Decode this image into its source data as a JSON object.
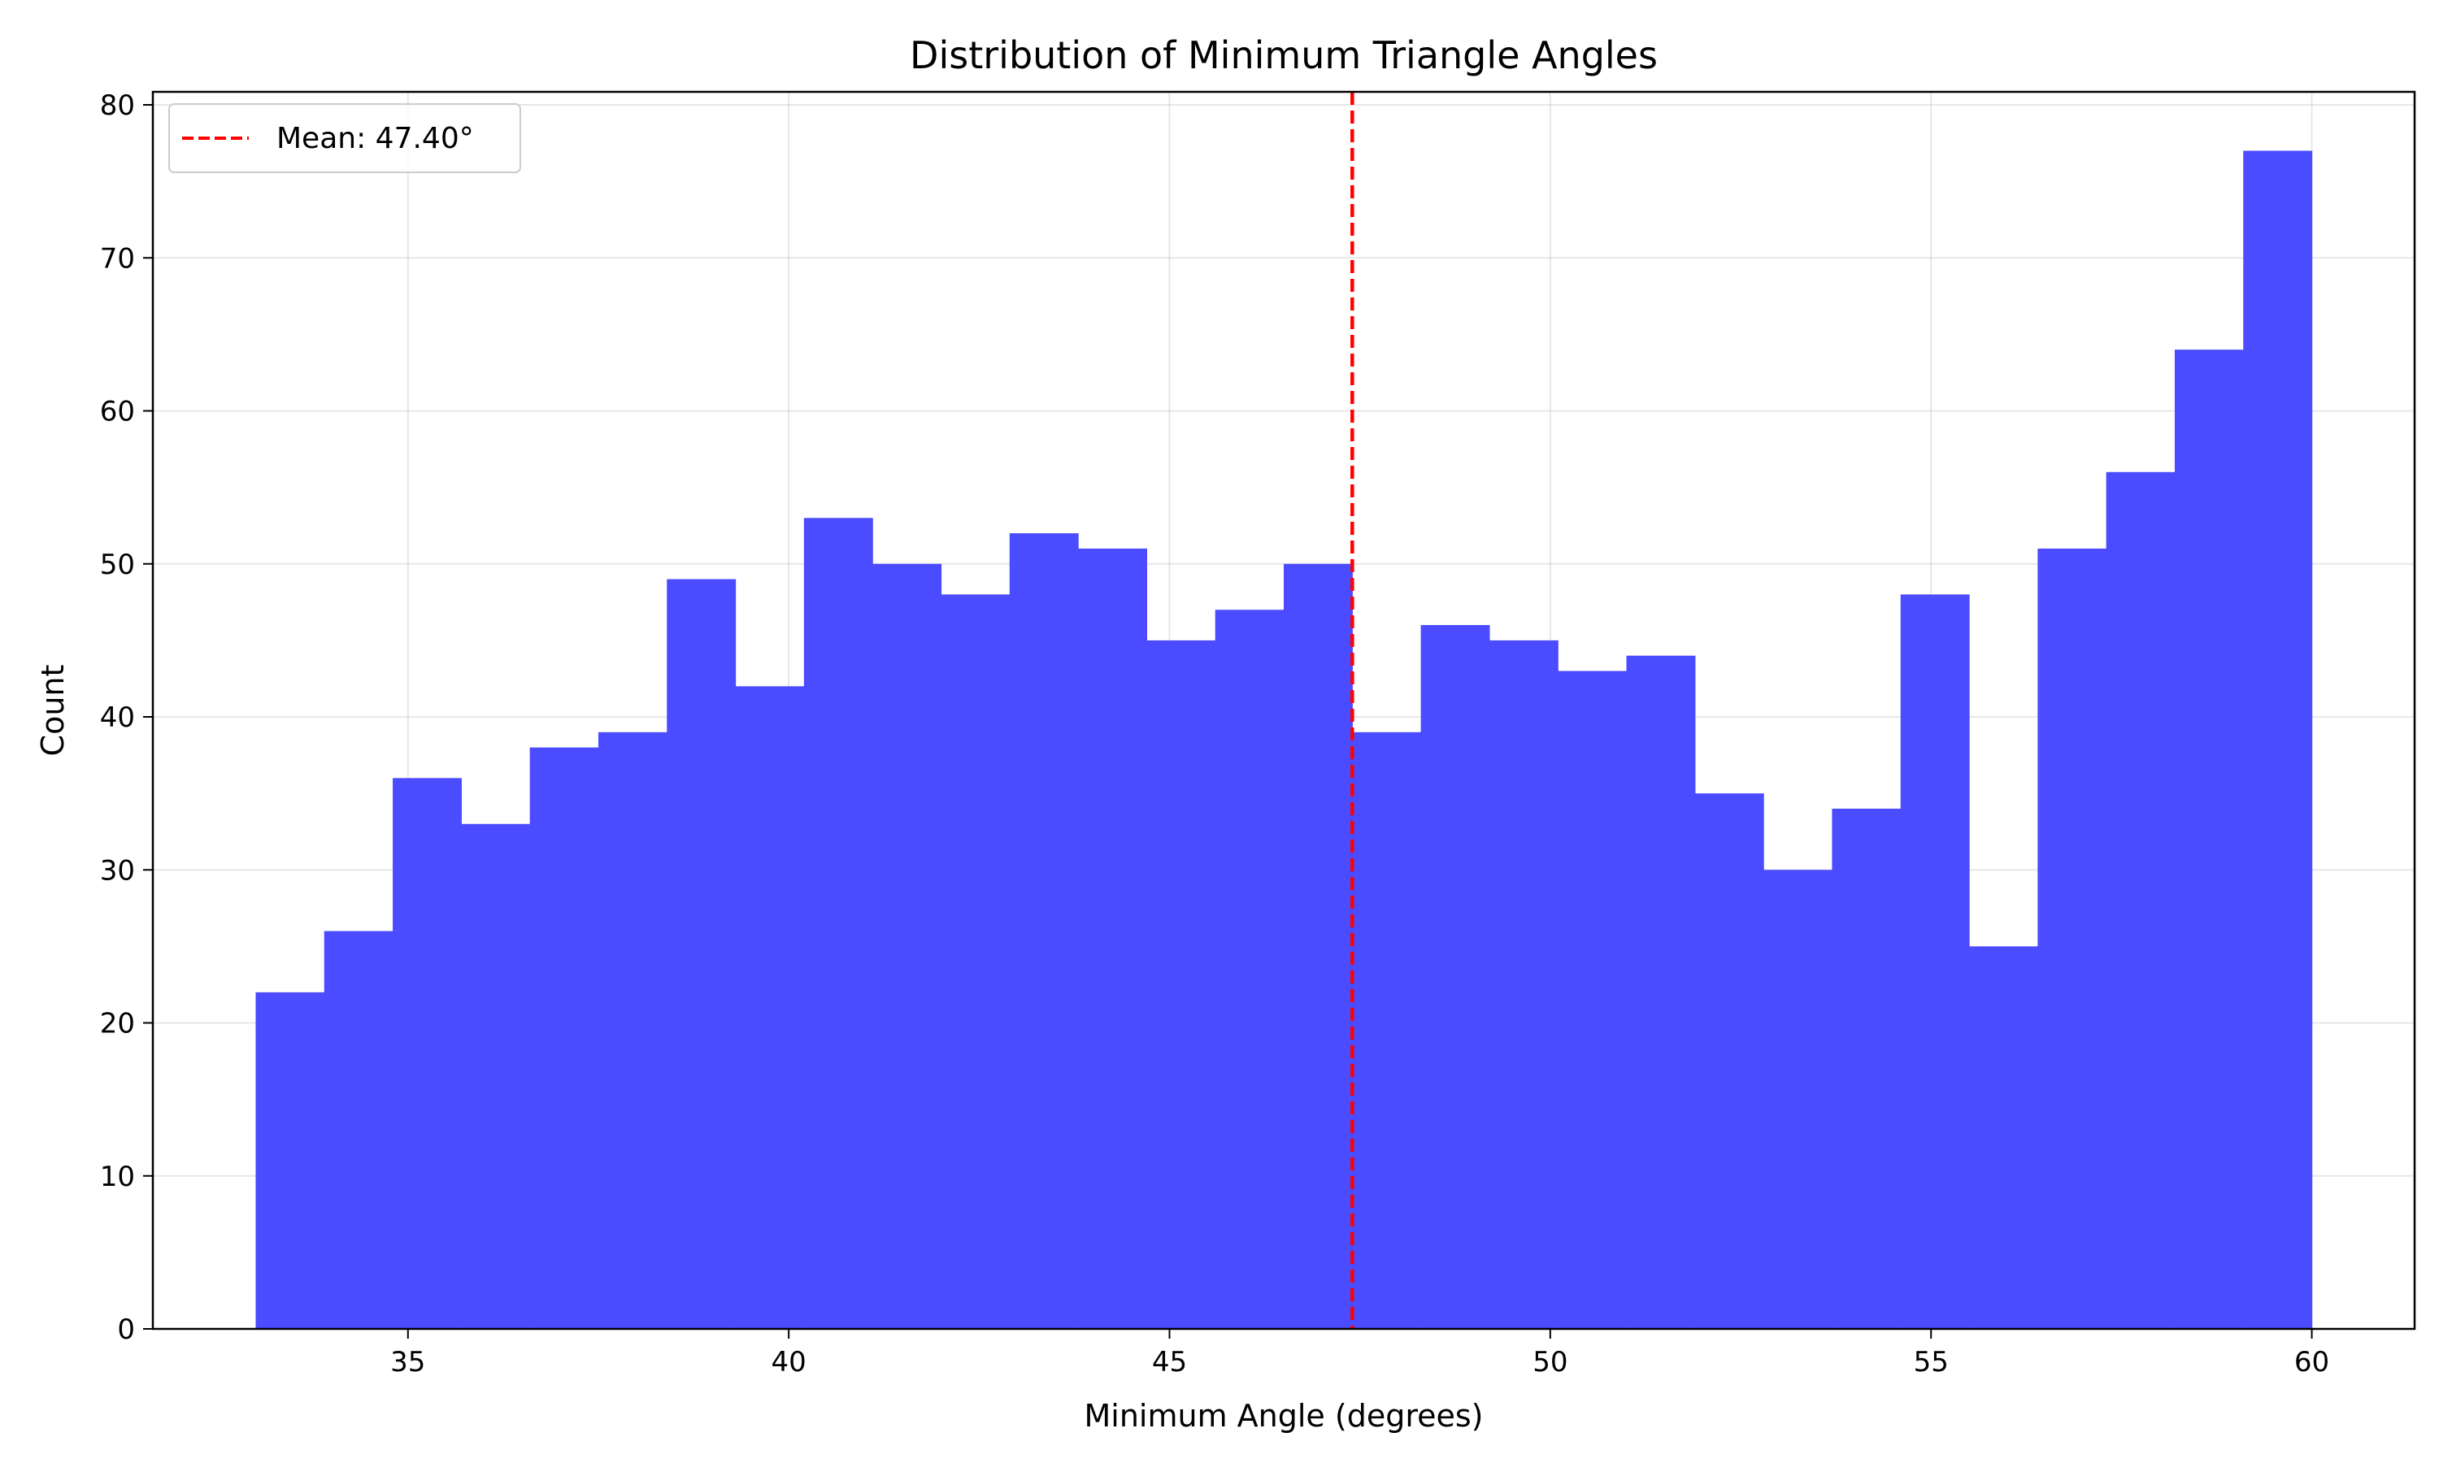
{
  "chart_data": {
    "type": "bar",
    "title": "Distribution of Minimum Triangle Angles",
    "xlabel": "Minimum Angle (degrees)",
    "ylabel": "Count",
    "xlim": [
      31.65,
      61.35
    ],
    "ylim": [
      0,
      80.85
    ],
    "xticks": [
      35,
      40,
      45,
      50,
      55,
      60
    ],
    "xtick_labels": [
      "35",
      "40",
      "45",
      "50",
      "55",
      "60"
    ],
    "yticks": [
      0,
      10,
      20,
      30,
      40,
      50,
      60,
      70,
      80
    ],
    "ytick_labels": [
      "0",
      "10",
      "20",
      "30",
      "40",
      "50",
      "60",
      "70",
      "80"
    ],
    "grid": true,
    "bin_start": 33.0,
    "bin_end": 60.0,
    "bin_edges": [
      33.0,
      33.9,
      34.8,
      35.7,
      36.6,
      37.5,
      38.4,
      39.3,
      40.2,
      41.1,
      42.0,
      42.9,
      43.8,
      44.7,
      45.6,
      46.5,
      47.4,
      48.3,
      49.2,
      50.1,
      51.0,
      51.9,
      52.8,
      53.7,
      54.6,
      55.5,
      56.4,
      57.3,
      58.2,
      59.1,
      60.0
    ],
    "values": [
      22,
      26,
      36,
      33,
      38,
      39,
      49,
      42,
      53,
      50,
      48,
      52,
      51,
      45,
      47,
      50,
      39,
      46,
      45,
      43,
      44,
      35,
      30,
      34,
      48,
      25,
      51,
      56,
      64,
      77
    ],
    "bar_color": "#4b4bff",
    "mean_line": {
      "value": 47.4,
      "label": "Mean: 47.40°",
      "color": "#ff0000",
      "style": "dashed"
    },
    "legend": {
      "placement": "top-left",
      "entries": [
        "Mean: 47.40°"
      ]
    }
  }
}
